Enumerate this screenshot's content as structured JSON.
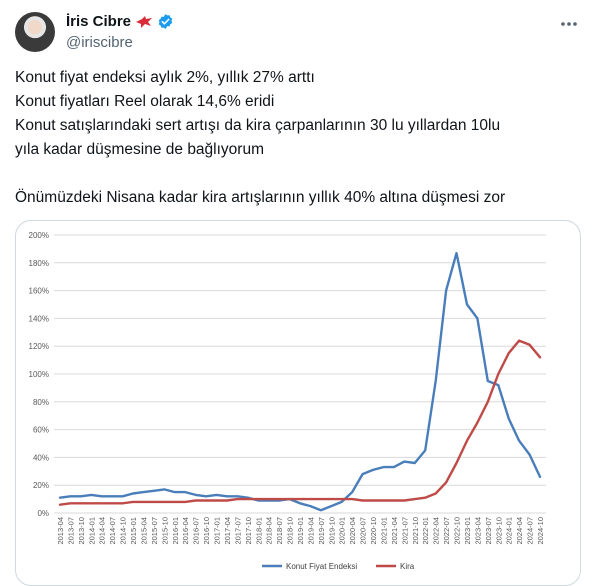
{
  "user": {
    "display_name": "İris Cibre",
    "handle": "@iriscibre",
    "flag_icon": "red-bird-icon",
    "verified_icon": "verified-badge-icon",
    "verified_color": "#1d9bf0"
  },
  "tweet": {
    "lines": [
      "Konut fiyat endeksi aylık 2%, yıllık 27% arttı",
      "Konut fiyatları Reel olarak 14,6% eridi",
      "Konut satışlarındaki sert artışı da kira çarpanlarının 30 lu yıllardan 10lu",
      "yıla kadar düşmesine de bağlıyorum"
    ],
    "last_line": "Önümüzdeki Nisana kadar kira artışlarının yıllık 40% altına düşmesi zor"
  },
  "chart_data": {
    "type": "line",
    "title": "",
    "xlabel": "",
    "ylabel": "",
    "ylim": [
      0,
      200
    ],
    "yticks": [
      "0%",
      "20%",
      "40%",
      "60%",
      "80%",
      "100%",
      "120%",
      "140%",
      "160%",
      "180%",
      "200%"
    ],
    "x": [
      "2013-04",
      "2013-07",
      "2013-10",
      "2014-01",
      "2014-04",
      "2014-07",
      "2014-10",
      "2015-01",
      "2015-04",
      "2015-07",
      "2015-10",
      "2016-01",
      "2016-04",
      "2016-07",
      "2016-10",
      "2017-01",
      "2017-04",
      "2017-07",
      "2017-10",
      "2018-01",
      "2018-04",
      "2018-07",
      "2018-10",
      "2019-01",
      "2019-04",
      "2019-07",
      "2019-10",
      "2020-01",
      "2020-04",
      "2020-07",
      "2020-10",
      "2021-01",
      "2021-04",
      "2021-07",
      "2021-10",
      "2022-01",
      "2022-04",
      "2022-07",
      "2022-10",
      "2023-01",
      "2023-04",
      "2023-07",
      "2023-10",
      "2024-01",
      "2024-04",
      "2024-07",
      "2024-10"
    ],
    "grid": true,
    "legend_position": "bottom",
    "series": [
      {
        "name": "Konut Fiyat Endeksi",
        "color": "#4a7ebb",
        "values": [
          11,
          12,
          12,
          13,
          12,
          12,
          12,
          14,
          15,
          16,
          17,
          15,
          15,
          13,
          12,
          13,
          12,
          12,
          11,
          9,
          9,
          9,
          10,
          7,
          5,
          2,
          5,
          8,
          15,
          28,
          31,
          33,
          33,
          37,
          36,
          45,
          95,
          160,
          187,
          150,
          140,
          95,
          92,
          68,
          52,
          42,
          26
        ]
      },
      {
        "name": "Kira",
        "color": "#be4b48",
        "values": [
          6,
          7,
          7,
          7,
          7,
          7,
          7,
          8,
          8,
          8,
          8,
          8,
          8,
          9,
          9,
          9,
          9,
          10,
          10,
          10,
          10,
          10,
          10,
          10,
          10,
          10,
          10,
          10,
          10,
          9,
          9,
          9,
          9,
          9,
          10,
          11,
          14,
          22,
          36,
          52,
          65,
          80,
          100,
          115,
          124,
          121,
          112
        ]
      }
    ]
  }
}
